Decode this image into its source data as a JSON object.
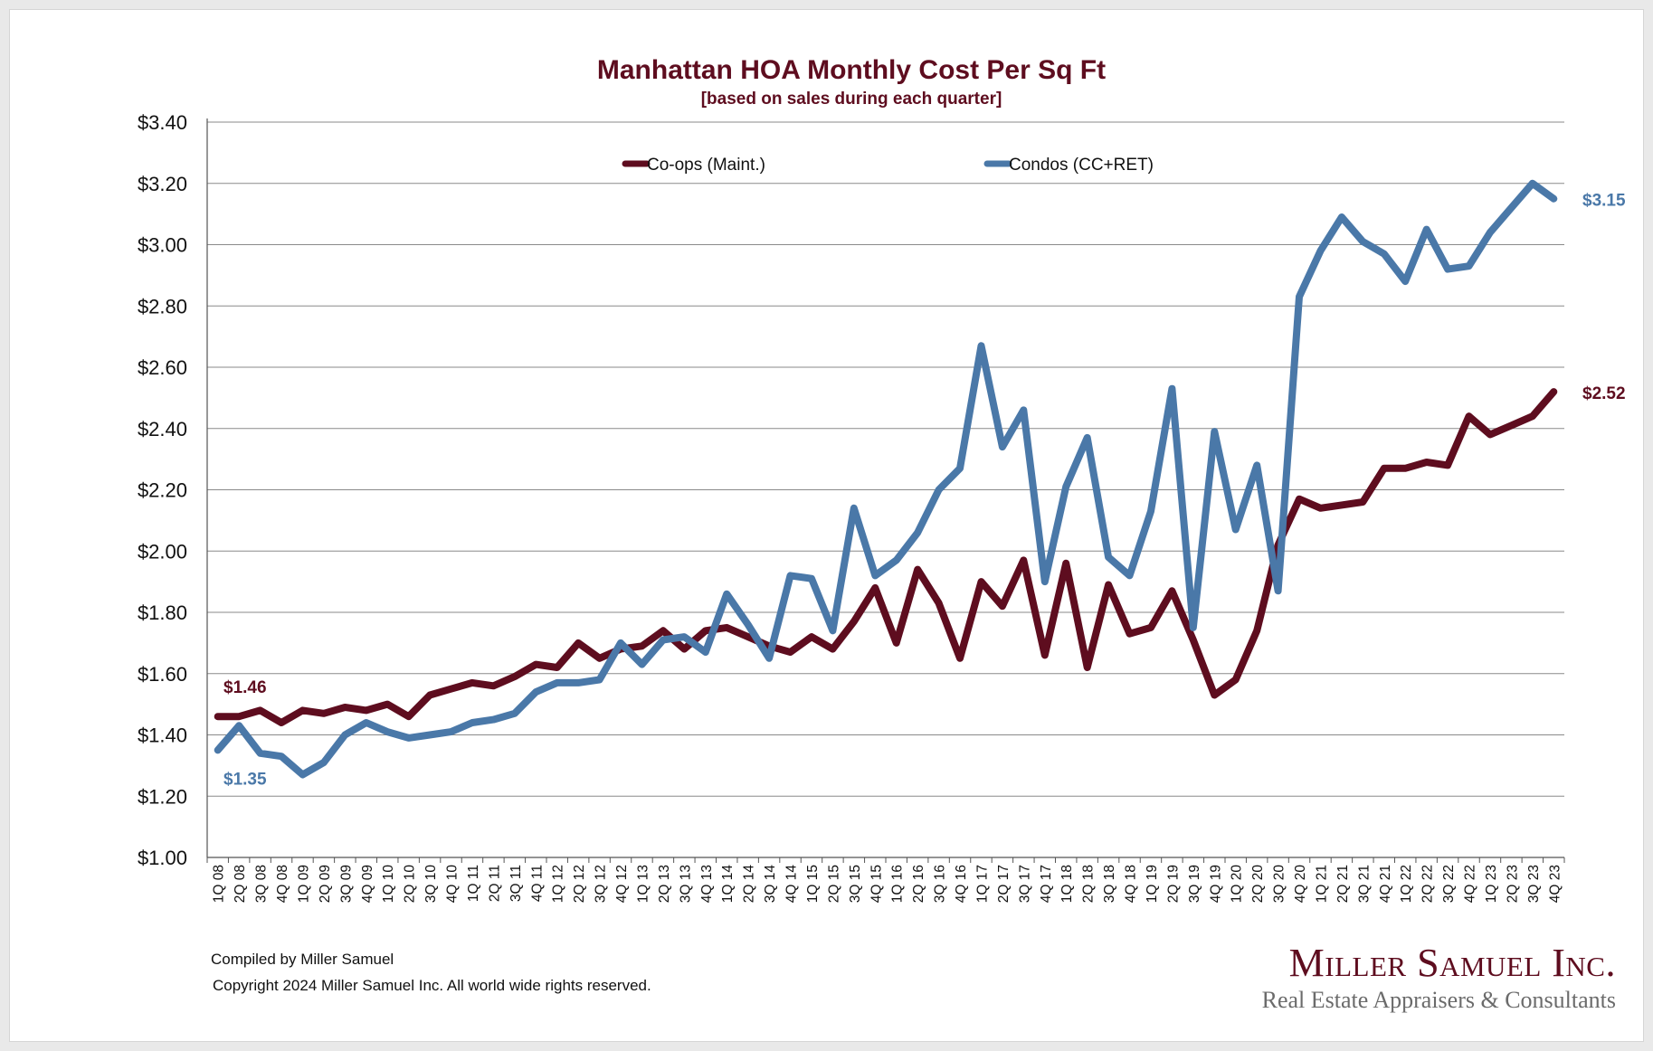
{
  "chart_data": {
    "type": "line",
    "title": "Manhattan HOA Monthly Cost Per Sq Ft",
    "subtitle": "[based on sales during each quarter]",
    "xlabel": "",
    "ylabel": "",
    "ylim": [
      1.0,
      3.4
    ],
    "ytick_step": 0.2,
    "ytick_labels": [
      "$1.00",
      "$1.20",
      "$1.40",
      "$1.60",
      "$1.80",
      "$2.00",
      "$2.20",
      "$2.40",
      "$2.60",
      "$2.80",
      "$3.00",
      "$3.20",
      "$3.40"
    ],
    "grid": "horizontal",
    "legend_position": "top-center",
    "categories": [
      "1Q 08",
      "2Q 08",
      "3Q 08",
      "4Q 08",
      "1Q 09",
      "2Q 09",
      "3Q 09",
      "4Q 09",
      "1Q 10",
      "2Q 10",
      "3Q 10",
      "4Q 10",
      "1Q 11",
      "2Q 11",
      "3Q 11",
      "4Q 11",
      "1Q 12",
      "2Q 12",
      "3Q 12",
      "4Q 12",
      "1Q 13",
      "2Q 13",
      "3Q 13",
      "4Q 13",
      "1Q 14",
      "2Q 14",
      "3Q 14",
      "4Q 14",
      "1Q 15",
      "2Q 15",
      "3Q 15",
      "4Q 15",
      "1Q 16",
      "2Q 16",
      "3Q 16",
      "4Q 16",
      "1Q 17",
      "2Q 17",
      "3Q 17",
      "4Q 17",
      "1Q 18",
      "2Q 18",
      "3Q 18",
      "4Q 18",
      "1Q 19",
      "2Q 19",
      "3Q 19",
      "4Q 19",
      "1Q 20",
      "2Q 20",
      "3Q 20",
      "4Q 20",
      "1Q 21",
      "2Q 21",
      "3Q 21",
      "4Q 21",
      "1Q 22",
      "2Q 22",
      "3Q 22",
      "4Q 22",
      "1Q 23",
      "2Q 23",
      "3Q 23",
      "4Q 23"
    ],
    "series": [
      {
        "name": "Co-ops (Maint.)",
        "color": "#5e0d1f",
        "values": [
          1.46,
          1.46,
          1.48,
          1.44,
          1.48,
          1.47,
          1.49,
          1.48,
          1.5,
          1.46,
          1.53,
          1.55,
          1.57,
          1.56,
          1.59,
          1.63,
          1.62,
          1.7,
          1.65,
          1.68,
          1.69,
          1.74,
          1.68,
          1.74,
          1.75,
          1.72,
          1.69,
          1.67,
          1.72,
          1.68,
          1.77,
          1.88,
          1.7,
          1.94,
          1.83,
          1.65,
          1.9,
          1.82,
          1.97,
          1.66,
          1.96,
          1.62,
          1.89,
          1.73,
          1.75,
          1.87,
          1.71,
          1.53,
          1.58,
          1.74,
          2.02,
          2.17,
          2.14,
          2.15,
          2.16,
          2.27,
          2.27,
          2.29,
          2.28,
          2.44,
          2.38,
          2.41,
          2.44,
          2.52
        ],
        "start_label": "$1.46",
        "end_label": "$2.52"
      },
      {
        "name": "Condos (CC+RET)",
        "color": "#4a78a8",
        "values": [
          1.35,
          1.43,
          1.34,
          1.33,
          1.27,
          1.31,
          1.4,
          1.44,
          1.41,
          1.39,
          1.4,
          1.41,
          1.44,
          1.45,
          1.47,
          1.54,
          1.57,
          1.57,
          1.58,
          1.7,
          1.63,
          1.71,
          1.72,
          1.67,
          1.86,
          1.76,
          1.65,
          1.92,
          1.91,
          1.74,
          2.14,
          1.92,
          1.97,
          2.06,
          2.2,
          2.27,
          2.67,
          2.34,
          2.46,
          1.9,
          2.21,
          2.37,
          1.98,
          1.92,
          2.13,
          2.53,
          1.75,
          2.39,
          2.07,
          2.28,
          1.87,
          2.83,
          2.98,
          3.09,
          3.01,
          2.97,
          2.88,
          3.05,
          2.92,
          2.93,
          3.04,
          3.12,
          3.2,
          3.15
        ],
        "start_label": "$1.35",
        "end_label": "$3.15"
      }
    ]
  },
  "footer": {
    "compiled_by": "Compiled by Miller Samuel",
    "copyright": "Copyright 2024 Miller Samuel Inc.  All world wide rights reserved."
  },
  "logo": {
    "name": "Miller Samuel Inc.",
    "tagline": "Real Estate Appraisers & Consultants"
  }
}
